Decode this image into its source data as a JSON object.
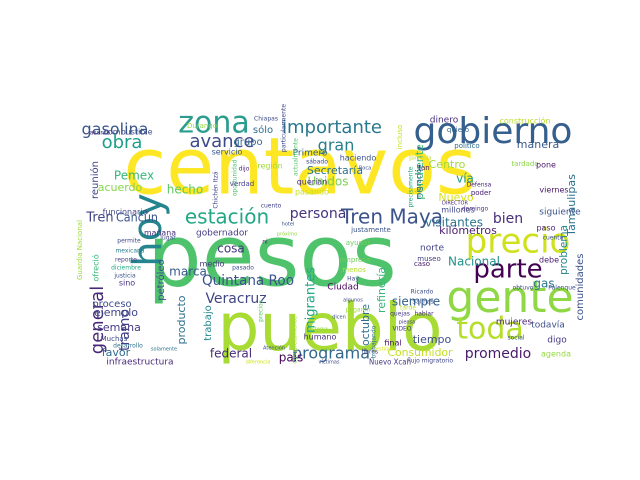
{
  "word_cloud": {
    "words": [
      {
        "text": "centavos",
        "color": "#fde725"
      },
      {
        "text": "pesos",
        "color": "#4ec36b"
      },
      {
        "text": "pueblo",
        "color": "#a8db34"
      },
      {
        "text": "gente",
        "color": "#8fd744"
      },
      {
        "text": "gobierno",
        "color": "#355f8d"
      },
      {
        "text": "precio",
        "color": "#d0e11c"
      },
      {
        "text": "parte",
        "color": "#440154"
      },
      {
        "text": "zona",
        "color": "#2a9d8e"
      },
      {
        "text": "hoy",
        "color": "#25858e"
      },
      {
        "text": "toda",
        "color": "#b5de2b"
      },
      {
        "text": "Tren Maya",
        "color": "#3b528b"
      },
      {
        "text": "importante",
        "color": "#2a788e"
      },
      {
        "text": "estación",
        "color": "#22a884"
      },
      {
        "text": "avance",
        "color": "#3e4989"
      },
      {
        "text": "gasolina",
        "color": "#39568c"
      },
      {
        "text": "obra",
        "color": "#1f9e89"
      },
      {
        "text": "general",
        "color": "#482878"
      },
      {
        "text": "programa",
        "color": "#31688e"
      },
      {
        "text": "persona",
        "color": "#46337e"
      },
      {
        "text": "gran",
        "color": "#287d8e"
      },
      {
        "text": "Quintana Roo",
        "color": "#3b528b"
      },
      {
        "text": "Veracruz",
        "color": "#404688"
      },
      {
        "text": "tramo",
        "color": "#433e85"
      },
      {
        "text": "promedio",
        "color": "#481a6c"
      },
      {
        "text": "migrantes",
        "color": "#22a884"
      },
      {
        "text": "bien",
        "color": "#472d7b"
      },
      {
        "text": "hecho",
        "color": "#5ec962"
      },
      {
        "text": "Nacional",
        "color": "#21918c"
      },
      {
        "text": "Pemex",
        "color": "#35b779"
      },
      {
        "text": "Secretaría",
        "color": "#2c728e"
      },
      {
        "text": "Unidos",
        "color": "#7ad151"
      },
      {
        "text": "Tren",
        "color": "#414487"
      },
      {
        "text": "Cancún",
        "color": "#3a548c"
      },
      {
        "text": "vía",
        "color": "#1e9b8a"
      },
      {
        "text": "acuerdo",
        "color": "#86d549"
      },
      {
        "text": "federal",
        "color": "#472a7a"
      },
      {
        "text": "siempre",
        "color": "#34608d"
      },
      {
        "text": "país",
        "color": "#450457"
      },
      {
        "text": "marca",
        "color": "#38598c"
      },
      {
        "text": "cosa",
        "color": "#453781"
      },
      {
        "text": "semana",
        "color": "#443a83"
      },
      {
        "text": "favor",
        "color": "#306a8e"
      },
      {
        "text": "ejemplo",
        "color": "#3f4788"
      },
      {
        "text": "producto",
        "color": "#2d708e"
      },
      {
        "text": "trabajo",
        "color": "#23888e"
      },
      {
        "text": "octubre",
        "color": "#2e6f8e"
      },
      {
        "text": "visitantes",
        "color": "#2b758e"
      },
      {
        "text": "kilómetros",
        "color": "#481d6f"
      },
      {
        "text": "pendiente",
        "color": "#35b779"
      },
      {
        "text": "Tamaulipas",
        "color": "#2c738e"
      },
      {
        "text": "manera",
        "color": "#38588c"
      },
      {
        "text": "comunidades",
        "color": "#3c4f8a"
      },
      {
        "text": "problema",
        "color": "#24878e"
      },
      {
        "text": "tiempo",
        "color": "#3d4e8a"
      },
      {
        "text": "refinería",
        "color": "#35b779"
      },
      {
        "text": "Consumidor",
        "color": "#c2df23"
      },
      {
        "text": "gas",
        "color": "#2a768e"
      },
      {
        "text": "Nuevo",
        "color": "#d8e219"
      },
      {
        "text": "Centro",
        "color": "#a0da39"
      },
      {
        "text": "petróleo",
        "color": "#3c508b"
      },
      {
        "text": "grupo",
        "color": "#2f6b8e"
      },
      {
        "text": "reunión",
        "color": "#404588"
      },
      {
        "text": "proceso",
        "color": "#3e4a89"
      },
      {
        "text": "Ciudad",
        "color": "#46085c"
      },
      {
        "text": "sólo",
        "color": "#2e6e8e"
      },
      {
        "text": "dinero",
        "color": "#472e7c"
      },
      {
        "text": "mujeres",
        "color": "#481f70"
      },
      {
        "text": "todavía",
        "color": "#3c4f8a"
      },
      {
        "text": "digo",
        "color": "#453882"
      },
      {
        "text": "agenda",
        "color": "#95d840"
      },
      {
        "text": "siguiente",
        "color": "#3b518b"
      },
      {
        "text": "millones",
        "color": "#3f4889"
      },
      {
        "text": "norte",
        "color": "#424186"
      },
      {
        "text": "humano",
        "color": "#46327e"
      },
      {
        "text": "final",
        "color": "#471063"
      },
      {
        "text": "Nuevo Xcan",
        "color": "#443983"
      },
      {
        "text": "infraestructura",
        "color": "#482979"
      },
      {
        "text": "gobernador",
        "color": "#433d84"
      },
      {
        "text": "funcionario",
        "color": "#404588"
      },
      {
        "text": "combustible",
        "color": "#3d4d8a"
      },
      {
        "text": "servicio",
        "color": "#38588c"
      },
      {
        "text": "región",
        "color": "#9fda3a"
      },
      {
        "text": "Primero",
        "color": "#34618d"
      },
      {
        "text": "haciendo",
        "color": "#3b528b"
      },
      {
        "text": "querían",
        "color": "#46337e"
      },
      {
        "text": "pasando",
        "color": "#c8e020"
      },
      {
        "text": "construcción",
        "color": "#bade28"
      },
      {
        "text": "medio",
        "color": "#453781"
      },
      {
        "text": "mañana",
        "color": "#472d7b"
      },
      {
        "text": "paso",
        "color": "#482475"
      },
      {
        "text": "debe",
        "color": "#481b6d"
      },
      {
        "text": "tardado",
        "color": "#8bd646"
      },
      {
        "text": "justamente",
        "color": "#3a548c"
      },
      {
        "text": "ayudar",
        "color": "#6ccd5a"
      },
      {
        "text": "empresa",
        "color": "#6ece58"
      },
      {
        "text": "menos",
        "color": "#b2dd2d"
      },
      {
        "text": "migración",
        "color": "#31678e"
      },
      {
        "text": "precisamente",
        "color": "#23a983"
      },
      {
        "text": "incluso",
        "color": "#c5e021"
      },
      {
        "text": "pone",
        "color": "#481769"
      },
      {
        "text": "viernes",
        "color": "#481668"
      },
      {
        "text": "poder",
        "color": "#482173"
      },
      {
        "text": "Defensa",
        "color": "#482576"
      },
      {
        "text": "político",
        "color": "#2f6c8e"
      },
      {
        "text": "quiero",
        "color": "#32648e"
      },
      {
        "text": "Muchas",
        "color": "#3e4989"
      },
      {
        "text": "ofreció",
        "color": "#32b67a"
      },
      {
        "text": "mexicana",
        "color": "#297a8e"
      },
      {
        "text": "reporte",
        "color": "#433e85"
      },
      {
        "text": "diciembre",
        "color": "#22a785"
      },
      {
        "text": "justicia",
        "color": "#3b528b"
      },
      {
        "text": "sino",
        "color": "#463480"
      },
      {
        "text": "Guardia Nacional",
        "color": "#9dd93b"
      },
      {
        "text": "Chichén Itzá",
        "color": "#3f4889"
      },
      {
        "text": "oportunidad",
        "color": "#4ac16d"
      },
      {
        "text": "verdad",
        "color": "#424086"
      },
      {
        "text": "Durango",
        "color": "#95d840"
      },
      {
        "text": "Chiapas",
        "color": "#3d4d8a"
      },
      {
        "text": "asunto",
        "color": "#482979"
      },
      {
        "text": "particularmente",
        "color": "#3e4989"
      },
      {
        "text": "completamente",
        "color": "#a2da37"
      },
      {
        "text": "desarrollo",
        "color": "#2e6f8e"
      },
      {
        "text": "museo",
        "color": "#424186"
      },
      {
        "text": "social",
        "color": "#3a548c"
      },
      {
        "text": "Palenque",
        "color": "#3b518b"
      },
      {
        "text": "obtuvo",
        "color": "#3e4a89"
      },
      {
        "text": "VIDEO",
        "color": "#453781"
      },
      {
        "text": "DIRECTOR",
        "color": "#482878"
      },
      {
        "text": "domingo",
        "color": "#46327e"
      },
      {
        "text": "hablar",
        "color": "#46307e"
      },
      {
        "text": "tarde",
        "color": "#b8de29"
      },
      {
        "text": "flujo migratorio",
        "color": "#404588"
      },
      {
        "text": "trabajando",
        "color": "#2c728e"
      },
      {
        "text": "actualmente",
        "color": "#54c568"
      },
      {
        "text": "ganancia",
        "color": "#c0df25"
      },
      {
        "text": "libres",
        "color": "#3f4788"
      },
      {
        "text": "caso",
        "color": "#481668"
      },
      {
        "text": "tan",
        "color": "#481a6c"
      },
      {
        "text": "lugar",
        "color": "#3e4a89"
      },
      {
        "text": "Atención",
        "color": "#3c4f8a"
      },
      {
        "text": "cuento",
        "color": "#414287"
      },
      {
        "text": "cuento",
        "color": "#3b518b"
      },
      {
        "text": "precios",
        "color": "#5ec962"
      },
      {
        "text": "algunos",
        "color": "#3e4a89"
      },
      {
        "text": "pagaron",
        "color": "#a2da37"
      },
      {
        "text": "Ricardo",
        "color": "#3c508b"
      },
      {
        "text": "Salinas",
        "color": "#3b528b"
      },
      {
        "text": "dijo",
        "color": "#482576"
      },
      {
        "text": "sábado",
        "color": "#3f4889"
      },
      {
        "text": "ni",
        "color": "#482173"
      },
      {
        "text": "Boca",
        "color": "#3e4989"
      },
      {
        "text": "hotel",
        "color": "#3b528b"
      },
      {
        "text": "permite",
        "color": "#3e4a89"
      },
      {
        "text": "gestión",
        "color": "#d8e219"
      },
      {
        "text": "quejas",
        "color": "#433d84"
      },
      {
        "text": "próximo",
        "color": "#95d840"
      },
      {
        "text": "dicen",
        "color": "#3c4f8a"
      },
      {
        "text": "víctimas",
        "color": "#3f4889"
      },
      {
        "text": "solamente",
        "color": "#2c728e"
      },
      {
        "text": "sistema",
        "color": "#95d840"
      },
      {
        "text": "Hay",
        "color": "#3e4a89"
      },
      {
        "text": "piensa",
        "color": "#433e85"
      },
      {
        "text": "pasado",
        "color": "#3c508b"
      },
      {
        "text": "diferencia",
        "color": "#c8e020"
      }
    ]
  }
}
